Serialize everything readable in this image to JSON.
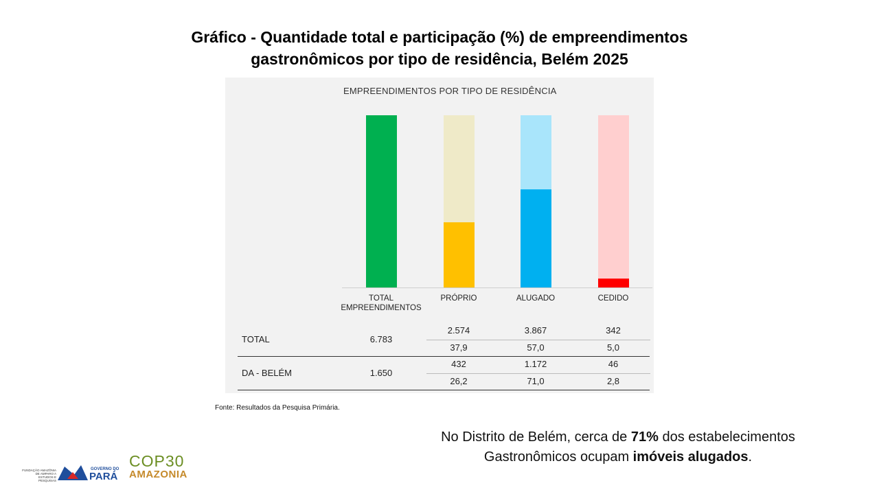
{
  "title_line1": "Gráfico - Quantidade total e participação (%) de empreendimentos",
  "title_line2": "gastronômicos por tipo de residência, Belém 2025",
  "chart_data": {
    "type": "bar",
    "title": "EMPREENDIMENTOS POR TIPO DE RESIDÊNCIA",
    "categories": [
      "TOTAL EMPREENDIMENTOS",
      "PRÓPRIO",
      "ALUGADO",
      "CEDIDO"
    ],
    "category_lines": [
      [
        "TOTAL",
        "EMPREENDIMENTOS"
      ],
      [
        "PRÓPRIO"
      ],
      [
        "ALUGADO"
      ],
      [
        "CEDIDO"
      ]
    ],
    "bar_share_percent": [
      100,
      37.9,
      57.0,
      5.0
    ],
    "colors_light": [
      "#00b050",
      "#efeac8",
      "#a9e5fb",
      "#ffcfcf"
    ],
    "colors_dark": [
      "#00b050",
      "#ffc000",
      "#00b0f0",
      "#ff0000"
    ],
    "table": {
      "rows": [
        {
          "label": "TOTAL",
          "total": "6.783",
          "counts": [
            "2.574",
            "3.867",
            "342"
          ],
          "percents": [
            "37,9",
            "57,0",
            "5,0"
          ]
        },
        {
          "label": "DA - BELÉM",
          "total": "1.650",
          "counts": [
            "432",
            "1.172",
            "46"
          ],
          "percents": [
            "26,2",
            "71,0",
            "2,8"
          ]
        }
      ]
    }
  },
  "source": "Fonte: Resultados da Pesquisa Primária.",
  "note": {
    "part1": "No Distrito de Belém, cerca de ",
    "bold1": "71%",
    "part2": " dos estabelecimentos",
    "part3": "Gastronômicos ocupam ",
    "bold2": "imóveis alugados",
    "part4": "."
  },
  "logos": {
    "fapespa": "FUNDAÇÃO AMAZÔNIA DE AMPARO A ESTUDOS E PESQUISAS",
    "governo_small": "GOVERNO DO",
    "governo_big": "PARÁ",
    "cop_top": "COP30",
    "cop_bottom": "AMAZONIA"
  }
}
